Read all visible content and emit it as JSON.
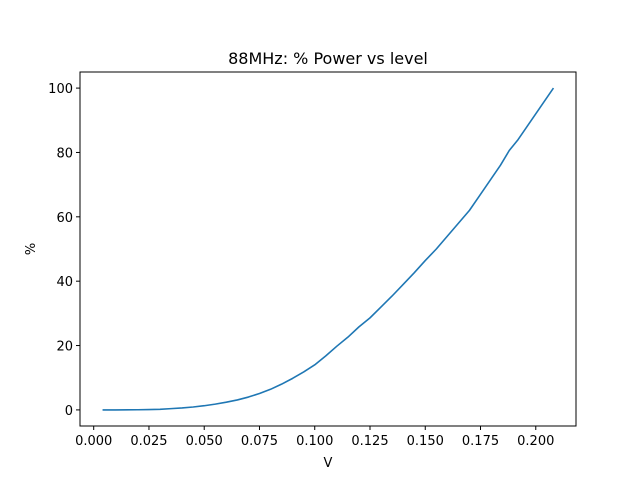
{
  "chart_data": {
    "type": "line",
    "title": "88MHz: % Power vs level",
    "xlabel": "V",
    "ylabel": "%",
    "xlim": [
      -0.0062,
      0.2182
    ],
    "ylim": [
      -5,
      105
    ],
    "xticks": [
      0.0,
      0.025,
      0.05,
      0.075,
      0.1,
      0.125,
      0.15,
      0.175,
      0.2
    ],
    "xtick_labels": [
      "0.000",
      "0.025",
      "0.050",
      "0.075",
      "0.100",
      "0.125",
      "0.150",
      "0.175",
      "0.200"
    ],
    "yticks": [
      0,
      20,
      40,
      60,
      80,
      100
    ],
    "ytick_labels": [
      "0",
      "20",
      "40",
      "60",
      "80",
      "100"
    ],
    "grid": false,
    "legend": null,
    "series": [
      {
        "color": "#1f77b4",
        "x": [
          0.004,
          0.01,
          0.02,
          0.025,
          0.03,
          0.035,
          0.04,
          0.045,
          0.05,
          0.055,
          0.06,
          0.065,
          0.07,
          0.075,
          0.08,
          0.085,
          0.09,
          0.095,
          0.1,
          0.105,
          0.11,
          0.115,
          0.12,
          0.125,
          0.13,
          0.135,
          0.14,
          0.145,
          0.15,
          0.155,
          0.16,
          0.165,
          0.17,
          0.175,
          0.18,
          0.184,
          0.188,
          0.192,
          0.196,
          0.2,
          0.204,
          0.208
        ],
        "y": [
          0.0,
          0.0,
          0.05,
          0.1,
          0.2,
          0.4,
          0.6,
          0.9,
          1.3,
          1.8,
          2.4,
          3.1,
          4.0,
          5.1,
          6.4,
          8.0,
          9.8,
          11.8,
          14.0,
          16.8,
          19.8,
          22.6,
          25.8,
          28.6,
          32.0,
          35.4,
          39.0,
          42.6,
          46.4,
          50.0,
          54.0,
          58.0,
          62.0,
          67.0,
          72.0,
          76.0,
          80.6,
          84.0,
          88.0,
          92.0,
          96.0,
          100.0
        ]
      }
    ]
  }
}
